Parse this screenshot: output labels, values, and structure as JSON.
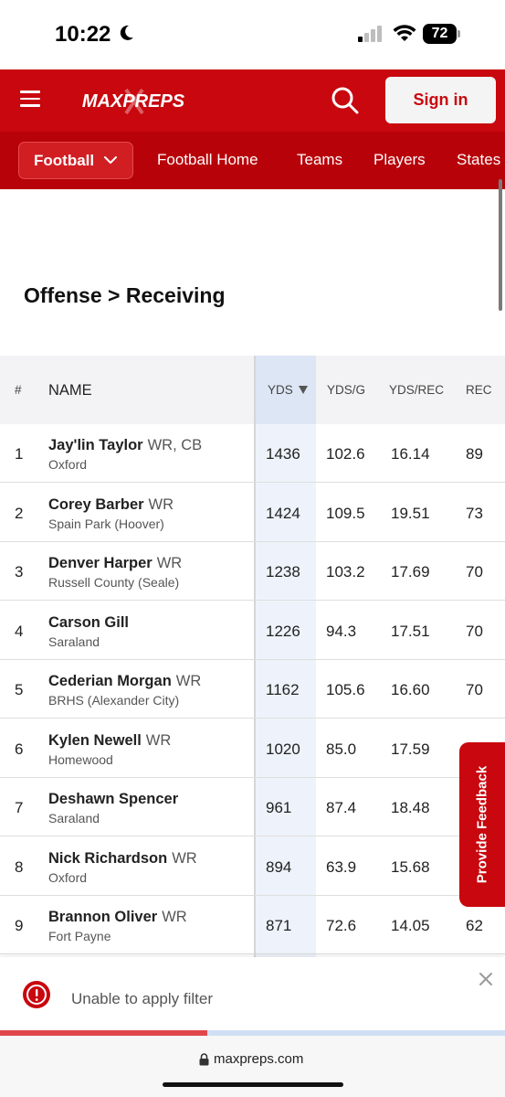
{
  "status_bar": {
    "time": "10:22",
    "battery": "72",
    "icons": [
      "moon-icon",
      "cellular-signal-icon",
      "wifi-icon",
      "battery-icon"
    ]
  },
  "header": {
    "logo": "MAXPREPS",
    "sign_in": "Sign in",
    "brand_color": "#c8070e"
  },
  "sport_nav": {
    "selected_sport": "Football",
    "links": [
      "Football Home",
      "Teams",
      "Players",
      "States"
    ]
  },
  "section_title": "Offense > Receiving",
  "table": {
    "columns": {
      "rank": "#",
      "name": "NAME",
      "yds": "YDS",
      "ydsg": "YDS/G",
      "ydsrec": "YDS/REC",
      "rec": "REC"
    },
    "sorted_by": "YDS",
    "rows": [
      {
        "rank": "1",
        "name": "Jay'lin Taylor",
        "pos": "WR, CB",
        "school": "Oxford",
        "yds": "1436",
        "ydsg": "102.6",
        "ydsrec": "16.14",
        "rec": "89"
      },
      {
        "rank": "2",
        "name": "Corey Barber",
        "pos": "WR",
        "school": "Spain Park (Hoover)",
        "yds": "1424",
        "ydsg": "109.5",
        "ydsrec": "19.51",
        "rec": "73"
      },
      {
        "rank": "3",
        "name": "Denver Harper",
        "pos": "WR",
        "school": "Russell County (Seale)",
        "yds": "1238",
        "ydsg": "103.2",
        "ydsrec": "17.69",
        "rec": "70"
      },
      {
        "rank": "4",
        "name": "Carson Gill",
        "pos": "",
        "school": "Saraland",
        "yds": "1226",
        "ydsg": "94.3",
        "ydsrec": "17.51",
        "rec": "70"
      },
      {
        "rank": "5",
        "name": "Cederian Morgan",
        "pos": "WR",
        "school": "BRHS (Alexander City)",
        "yds": "1162",
        "ydsg": "105.6",
        "ydsrec": "16.60",
        "rec": "70"
      },
      {
        "rank": "6",
        "name": "Kylen Newell",
        "pos": "WR",
        "school": "Homewood",
        "yds": "1020",
        "ydsg": "85.0",
        "ydsrec": "17.59",
        "rec": ""
      },
      {
        "rank": "7",
        "name": "Deshawn Spencer",
        "pos": "",
        "school": "Saraland",
        "yds": "961",
        "ydsg": "87.4",
        "ydsrec": "18.48",
        "rec": ""
      },
      {
        "rank": "8",
        "name": "Nick Richardson",
        "pos": "WR",
        "school": "Oxford",
        "yds": "894",
        "ydsg": "63.9",
        "ydsrec": "15.68",
        "rec": ""
      },
      {
        "rank": "9",
        "name": "Brannon Oliver",
        "pos": "WR",
        "school": "Fort Payne",
        "yds": "871",
        "ydsg": "72.6",
        "ydsrec": "14.05",
        "rec": "62"
      }
    ]
  },
  "feedback_tab": "Provide Feedback",
  "toast": {
    "message": "Unable to apply filter",
    "progress": 0.41
  },
  "url_bar": {
    "url": "maxpreps.com"
  }
}
